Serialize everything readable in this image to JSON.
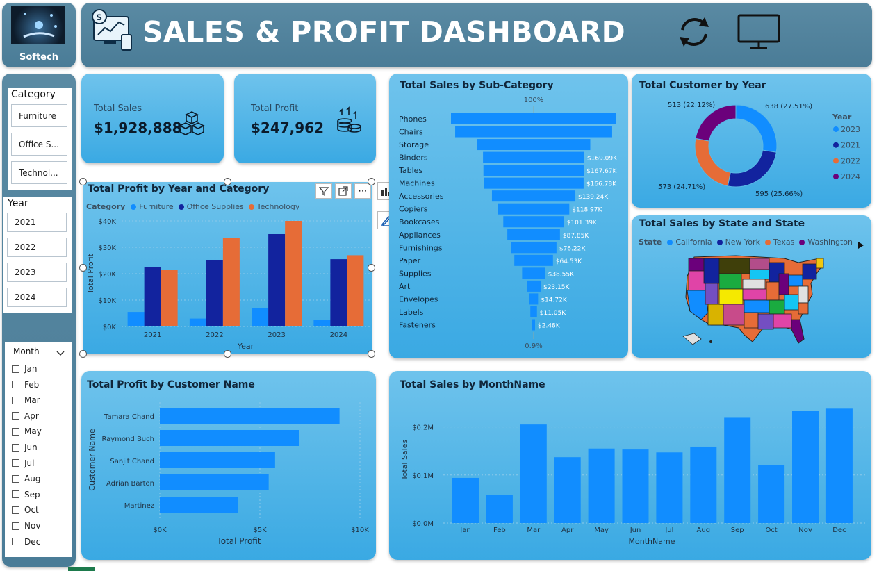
{
  "logo": {
    "label": "Softech"
  },
  "header": {
    "title": "SALES & PROFIT DASHBOARD"
  },
  "slicers": {
    "category": {
      "title": "Category",
      "items": [
        "Furniture",
        "Office S...",
        "Technol..."
      ]
    },
    "year": {
      "title": "Year",
      "items": [
        "2021",
        "2022",
        "2023",
        "2024"
      ]
    },
    "month": {
      "title": "Month",
      "items": [
        "Jan",
        "Feb",
        "Mar",
        "Apr",
        "May",
        "Jun",
        "Jul",
        "Aug",
        "Sep",
        "Oct",
        "Nov",
        "Dec"
      ]
    }
  },
  "kpis": {
    "sales": {
      "label": "Total Sales",
      "value": "$1,928,888"
    },
    "profit": {
      "label": "Total Profit",
      "value": "$247,962"
    }
  },
  "visual_toolbar": {
    "more": "⋯"
  },
  "colors": {
    "furniture": "#118dff",
    "office": "#12239e",
    "technology": "#e66c37",
    "y2024": "#6b007b"
  },
  "chart_data": [
    {
      "id": "profit_year_category",
      "type": "bar",
      "title": "Total Profit by Year and Category",
      "legend_title": "Category",
      "categories": [
        "2021",
        "2022",
        "2023",
        "2024"
      ],
      "series": [
        {
          "name": "Furniture",
          "values": [
            5500,
            3000,
            7000,
            2500
          ]
        },
        {
          "name": "Office Supplies",
          "values": [
            22500,
            25000,
            35000,
            25500
          ]
        },
        {
          "name": "Technology",
          "values": [
            21500,
            33500,
            40000,
            27000
          ]
        }
      ],
      "xlabel": "Year",
      "ylabel": "Total Profit",
      "ylim": [
        0,
        40000
      ],
      "yticks": [
        "$0K",
        "$10K",
        "$20K",
        "$30K",
        "$40K"
      ]
    },
    {
      "id": "sales_subcategory",
      "type": "bar",
      "title": "Total Sales by Sub-Category",
      "top_label": "100%",
      "bottom_label": "0.9%",
      "categories": [
        "Phones",
        "Chairs",
        "Storage",
        "Binders",
        "Tables",
        "Machines",
        "Accessories",
        "Copiers",
        "Bookcases",
        "Appliances",
        "Furnishings",
        "Paper",
        "Supplies",
        "Art",
        "Envelopes",
        "Labels",
        "Fasteners"
      ],
      "values": [
        276000,
        262000,
        189000,
        169090,
        167670,
        166780,
        139240,
        118970,
        101390,
        87850,
        76220,
        64530,
        38550,
        23150,
        14720,
        11050,
        2480
      ],
      "data_labels": [
        "",
        "",
        "",
        "$169.09K",
        "$167.67K",
        "$166.78K",
        "$139.24K",
        "$118.97K",
        "$101.39K",
        "$87.85K",
        "$76.22K",
        "$64.53K",
        "$38.55K",
        "$23.15K",
        "$14.72K",
        "$11.05K",
        "$2.48K"
      ]
    },
    {
      "id": "customer_year",
      "type": "pie",
      "title": "Total Customer by Year",
      "legend_title": "Year",
      "labels": [
        "2023",
        "2021",
        "2022",
        "2024"
      ],
      "values": [
        638,
        595,
        573,
        513
      ],
      "data_labels": [
        "638 (27.51%)",
        "595 (25.66%)",
        "573 (24.71%)",
        "513 (22.12%)"
      ]
    },
    {
      "id": "profit_customer",
      "type": "bar",
      "title": "Total Profit by Customer Name",
      "categories": [
        "Tamara Chand",
        "Raymond Buch",
        "Sanjit Chand",
        "Adrian Barton",
        "Martinez"
      ],
      "values": [
        8980,
        6980,
        5760,
        5440,
        3900
      ],
      "xlabel": "Total Profit",
      "ylabel": "Customer Name",
      "xlim": [
        0,
        10000
      ],
      "xticks": [
        "$0K",
        "$5K",
        "$10K"
      ]
    },
    {
      "id": "sales_month",
      "type": "bar",
      "title": "Total Sales by MonthName",
      "categories": [
        "Jan",
        "Feb",
        "Mar",
        "Apr",
        "May",
        "Jun",
        "Jul",
        "Aug",
        "Sep",
        "Oct",
        "Nov",
        "Dec"
      ],
      "values": [
        94000,
        59000,
        205000,
        137000,
        155000,
        153000,
        147000,
        159000,
        219000,
        121000,
        234000,
        238000
      ],
      "xlabel": "MonthName",
      "ylabel": "Total Sales",
      "ylim": [
        0,
        250000
      ],
      "yticks": [
        "$0.0M",
        "$0.1M",
        "$0.2M"
      ]
    }
  ],
  "map": {
    "title": "Total Sales by State and State",
    "legend_title": "State",
    "legend": [
      "California",
      "New York",
      "Texas",
      "Washington"
    ]
  }
}
